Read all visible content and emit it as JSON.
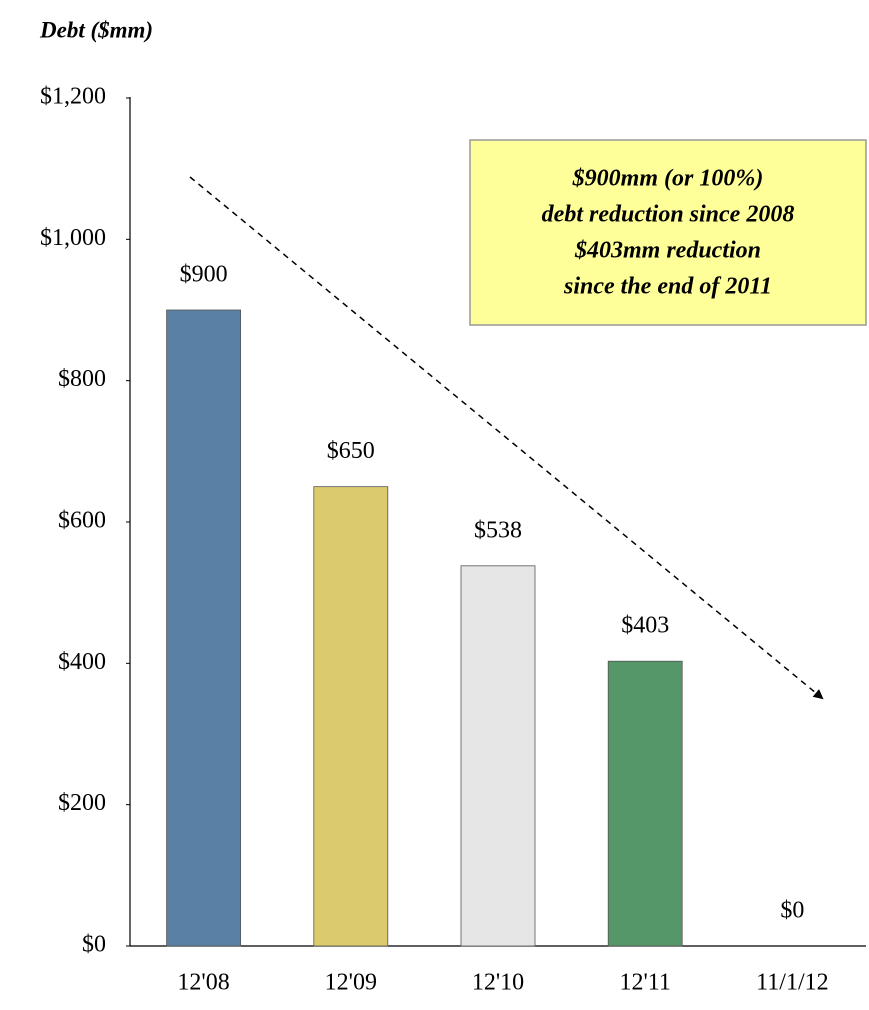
{
  "chart_data": {
    "type": "bar",
    "title": "Debt ($mm)",
    "categories": [
      "12'08",
      "12'09",
      "12'10",
      "12'11",
      "11/1/12"
    ],
    "values": [
      900,
      650,
      538,
      403,
      0
    ],
    "value_labels": [
      "$900",
      "$650",
      "$538",
      "$403",
      "$0"
    ],
    "colors": [
      "#5b80a5",
      "#dbcb6c",
      "#e6e6e6",
      "#56976a",
      "#cccccc"
    ],
    "ylim": [
      0,
      1200
    ],
    "yticks": [
      {
        "value": 0,
        "label": "$0"
      },
      {
        "value": 200,
        "label": "$200"
      },
      {
        "value": 400,
        "label": "$400"
      },
      {
        "value": 600,
        "label": "$600"
      },
      {
        "value": 800,
        "label": "$800"
      },
      {
        "value": 1000,
        "label": "$1,000"
      },
      {
        "value": 1200,
        "label": "$1,200"
      }
    ],
    "grid": false,
    "annotation": [
      "$900mm (or 100%)",
      "debt  reduction since 2008",
      "$403mm reduction",
      "since the end of 2011"
    ]
  }
}
